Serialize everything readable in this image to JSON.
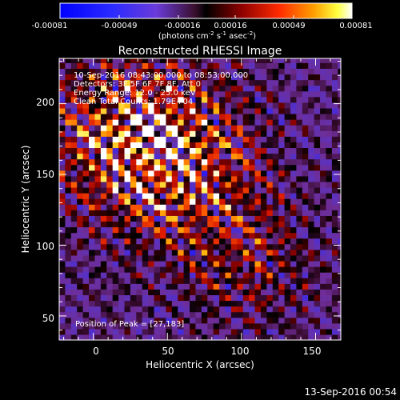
{
  "colorbar": {
    "tick_labels": [
      "-0.00081",
      "-0.00049",
      "-0.00016",
      "0.00016",
      "0.00049",
      "0.00081"
    ],
    "units_label": "(photons cm",
    "units_sup1": "-2",
    "units_mid1": " s",
    "units_sup2": "-1",
    "units_mid2": " asec",
    "units_sup3": "-2",
    "units_end": ")"
  },
  "plot": {
    "title": "Reconstructed RHESSI Image",
    "xlabel": "Heliocentric X (arcsec)",
    "ylabel": "Heliocentric Y (arcsec)",
    "x_ticks": [
      "0",
      "50",
      "100",
      "150"
    ],
    "y_ticks": [
      "50",
      "100",
      "150",
      "200"
    ],
    "info_lines": [
      "10-Sep-2016 08:43:00.000 to 08:53:00.000",
      "Detectors: 3F 5F 6F 7F 8F, Att 0",
      "Energy Range: 12.0 - 25.0 keV",
      "Clean      Total Counts: 1.79E+04"
    ],
    "peak_label": "Position of Peak = [27,183]"
  },
  "footer": {
    "timestamp": "13-Sep-2016 00:54"
  },
  "image_data": {
    "xlim": [
      -23,
      167
    ],
    "ylim": [
      33,
      232
    ],
    "peak": [
      27,
      183
    ],
    "colormap": "red-temperature diverging (blue-purple negative, red-yellow-white positive)"
  }
}
